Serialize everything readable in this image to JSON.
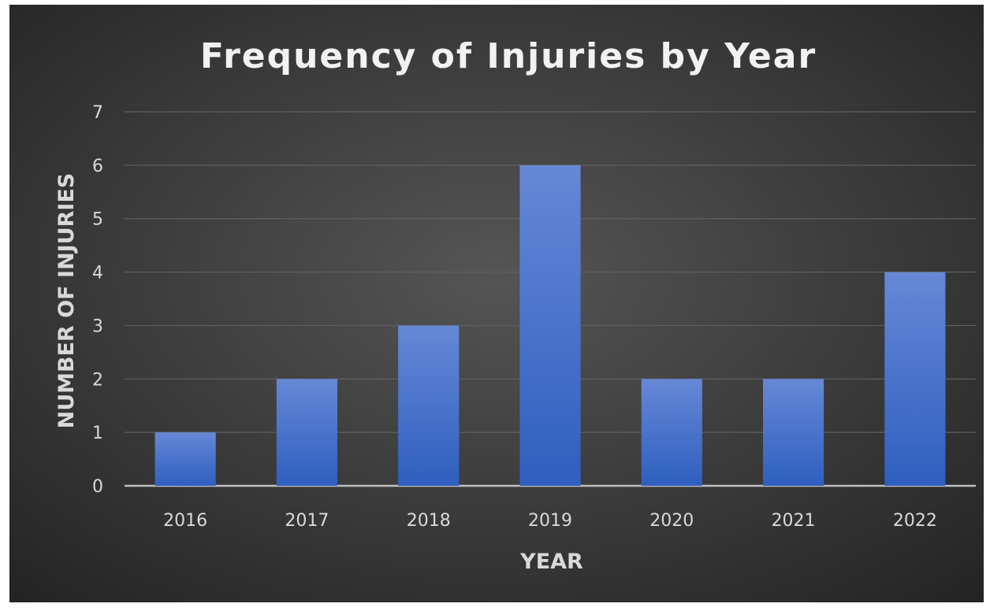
{
  "chart_data": {
    "type": "bar",
    "title": "Frequency of Injuries by Year",
    "xlabel": "YEAR",
    "ylabel": "NUMBER OF INJURIES",
    "categories": [
      "2016",
      "2017",
      "2018",
      "2019",
      "2020",
      "2021",
      "2022"
    ],
    "values": [
      1,
      2,
      3,
      6,
      2,
      2,
      4
    ],
    "ylim": [
      0,
      7
    ],
    "yticks": [
      "0",
      "1",
      "2",
      "3",
      "4",
      "5",
      "6",
      "7"
    ],
    "grid": true,
    "legend": "none",
    "colors": {
      "background_center": "#555555",
      "background_edge": "#232323",
      "bar_top": "#6688d6",
      "bar_bottom": "#2e5fbf"
    }
  }
}
